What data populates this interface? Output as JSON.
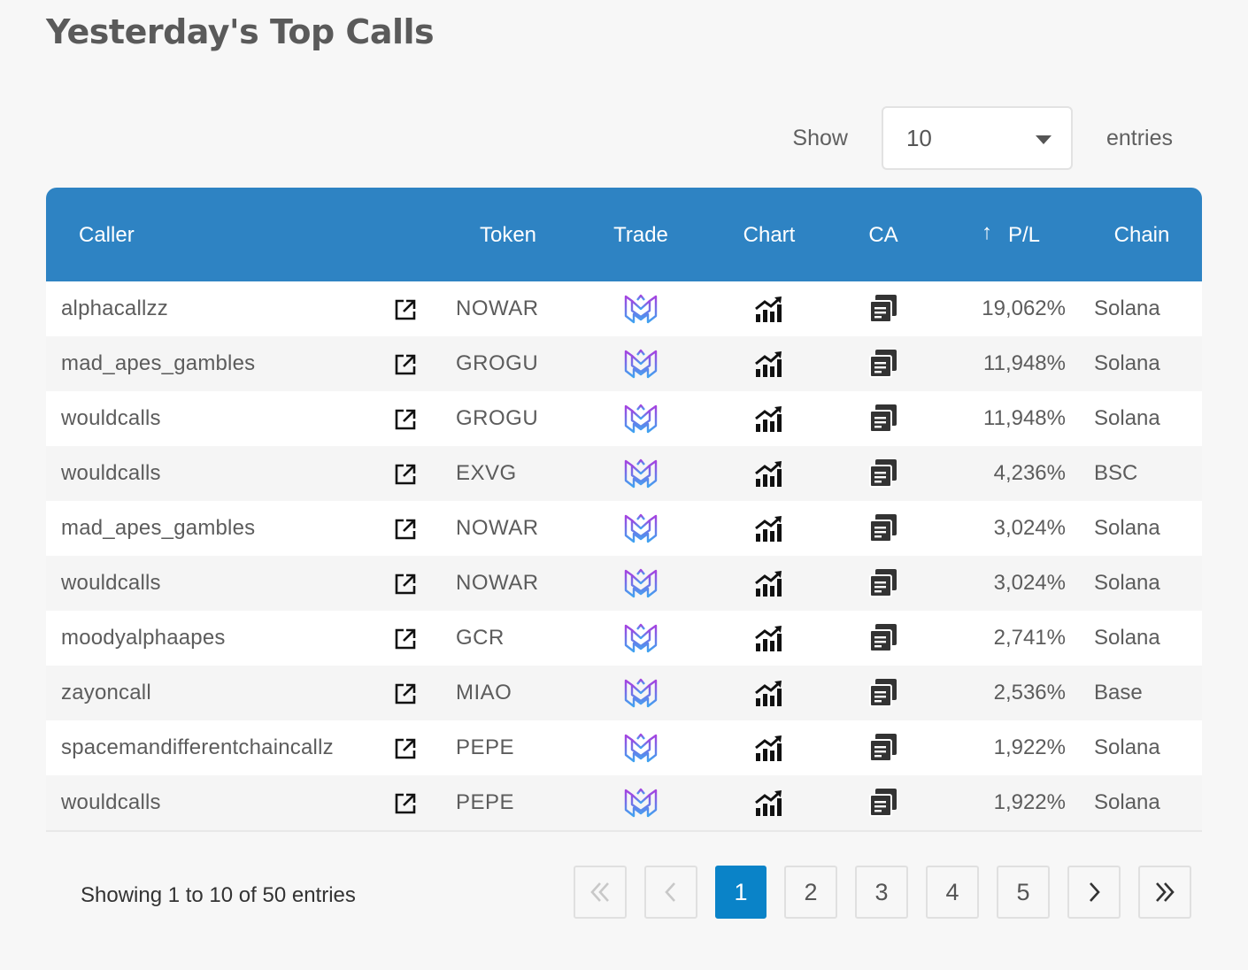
{
  "page": {
    "title": "Yesterday's Top Calls"
  },
  "length_control": {
    "show_label": "Show",
    "selected": "10",
    "entries_label": "entries"
  },
  "table": {
    "headers": {
      "caller": "Caller",
      "token": "Token",
      "trade": "Trade",
      "chart": "Chart",
      "ca": "CA",
      "pl": "P/L",
      "chain": "Chain"
    },
    "sort_indicator": "↑",
    "rows": [
      {
        "caller": "alphacallzz",
        "token": "NOWAR",
        "pl": "19,062%",
        "chain": "Solana"
      },
      {
        "caller": "mad_apes_gambles",
        "token": "GROGU",
        "pl": "11,948%",
        "chain": "Solana"
      },
      {
        "caller": "wouldcalls",
        "token": "GROGU",
        "pl": "11,948%",
        "chain": "Solana"
      },
      {
        "caller": "wouldcalls",
        "token": "EXVG",
        "pl": "4,236%",
        "chain": "BSC"
      },
      {
        "caller": "mad_apes_gambles",
        "token": "NOWAR",
        "pl": "3,024%",
        "chain": "Solana"
      },
      {
        "caller": "wouldcalls",
        "token": "NOWAR",
        "pl": "3,024%",
        "chain": "Solana"
      },
      {
        "caller": "moodyalphaapes",
        "token": "GCR",
        "pl": "2,741%",
        "chain": "Solana"
      },
      {
        "caller": "zayoncall",
        "token": "MIAO",
        "pl": "2,536%",
        "chain": "Base"
      },
      {
        "caller": "spacemandifferentchaincallz",
        "token": "PEPE",
        "pl": "1,922%",
        "chain": "Solana"
      },
      {
        "caller": "wouldcalls",
        "token": "PEPE",
        "pl": "1,922%",
        "chain": "Solana"
      }
    ],
    "icons": {
      "link": "external-link-icon",
      "trade": "trade-logo-icon",
      "chart": "chart-growth-icon",
      "ca": "copy-contract-icon"
    }
  },
  "footer": {
    "info": "Showing 1 to 10 of 50 entries",
    "pagination": {
      "first": "«",
      "prev": "‹",
      "next": "›",
      "last": "»",
      "pages": [
        "1",
        "2",
        "3",
        "4",
        "5"
      ],
      "current": "1"
    }
  },
  "colors": {
    "header_bg": "#2e83c3",
    "active_page": "#0a83c8",
    "trade_logo_start": "#a542e0",
    "trade_logo_end": "#3fa3f0"
  }
}
